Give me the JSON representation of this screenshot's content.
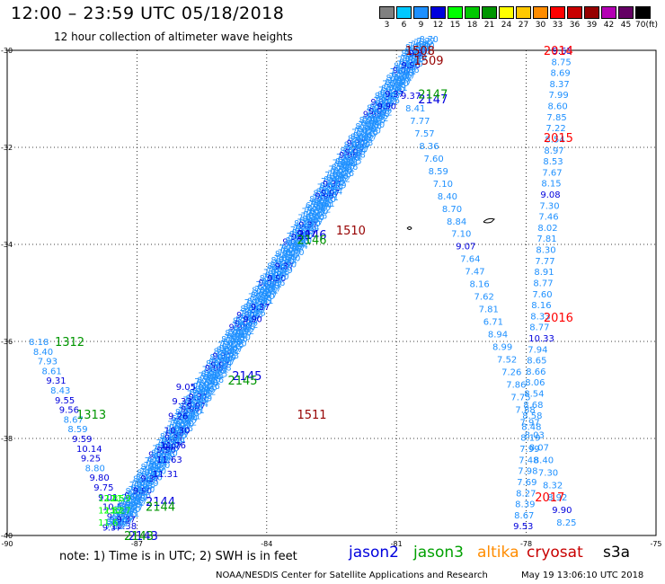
{
  "header": {
    "title": "12:00 – 23:59 UTC 05/18/2018",
    "subtitle": "12 hour collection of altimeter wave heights"
  },
  "colorbar": {
    "unit": "(ft)",
    "levels": [
      "3",
      "6",
      "9",
      "12",
      "15",
      "18",
      "21",
      "24",
      "27",
      "30",
      "33",
      "36",
      "39",
      "42",
      "45",
      "70"
    ],
    "colors": [
      "#808080",
      "#00c8ff",
      "#1e90ff",
      "#0000dd",
      "#00ff00",
      "#00c800",
      "#009600",
      "#ffff00",
      "#ffc800",
      "#ff8c00",
      "#ff0000",
      "#c80000",
      "#960000",
      "#b400b4",
      "#640064",
      "#000000"
    ]
  },
  "chart_data": {
    "type": "scatter",
    "title": "12:00 – 23:59 UTC 05/18/2018",
    "subtitle": "12 hour collection of altimeter wave heights",
    "x_ticks": [
      "-90",
      "-87",
      "-84",
      "-81",
      "-78",
      "-75"
    ],
    "y_ticks": [
      "-30",
      "-32",
      "-34",
      "-36",
      "-38",
      "-40"
    ],
    "xlim": [
      -90,
      -75
    ],
    "ylim": [
      -40,
      -30
    ],
    "grid": true,
    "series": [
      {
        "name": "jason2",
        "color": "#0000dd",
        "alt_color": "#1e90ff",
        "points": [
          {
            "x": -89.5,
            "y": -36.0,
            "label": "8.18"
          },
          {
            "x": -89.4,
            "y": -36.2,
            "label": "8.40"
          },
          {
            "x": -89.3,
            "y": -36.4,
            "label": "7.93"
          },
          {
            "x": -89.2,
            "y": -36.6,
            "label": "8.61"
          },
          {
            "x": -89.1,
            "y": -36.8,
            "label": "9.31"
          },
          {
            "x": -89.0,
            "y": -37.0,
            "label": "8.43"
          },
          {
            "x": -88.9,
            "y": -37.2,
            "label": "9.55"
          },
          {
            "x": -88.8,
            "y": -37.4,
            "label": "9.56"
          },
          {
            "x": -88.7,
            "y": -37.6,
            "label": "8.67"
          },
          {
            "x": -88.6,
            "y": -37.8,
            "label": "8.59"
          },
          {
            "x": -88.5,
            "y": -38.0,
            "label": "9.59"
          },
          {
            "x": -88.4,
            "y": -38.2,
            "label": "10.14"
          },
          {
            "x": -88.3,
            "y": -38.4,
            "label": "9.25"
          },
          {
            "x": -88.2,
            "y": -38.6,
            "label": "8.80"
          },
          {
            "x": -88.1,
            "y": -38.8,
            "label": "9.80"
          },
          {
            "x": -88.0,
            "y": -39.0,
            "label": "9.75"
          },
          {
            "x": -87.9,
            "y": -39.2,
            "label": "9.01"
          },
          {
            "x": -87.8,
            "y": -39.4,
            "label": "10.51"
          },
          {
            "x": -87.7,
            "y": -39.6,
            "label": "9.37"
          },
          {
            "x": -87.6,
            "y": -39.8,
            "label": "10.38"
          }
        ],
        "annotations": [
          {
            "text": "2147",
            "x": -80.5,
            "y": -31.0,
            "color": "#0000dd"
          },
          {
            "text": "2146",
            "x": -83.3,
            "y": -33.8,
            "color": "#0000dd"
          },
          {
            "text": "2145",
            "x": -84.8,
            "y": -36.7,
            "color": "#0000dd"
          },
          {
            "text": "2144",
            "x": -86.8,
            "y": -39.3,
            "color": "#0000dd"
          },
          {
            "text": "2143",
            "x": -87.2,
            "y": -40.0,
            "color": "#0000dd"
          }
        ]
      },
      {
        "name": "jason3",
        "color": "#00a000",
        "annotations": [
          {
            "text": "1312",
            "x": -88.9,
            "y": -36.0,
            "color": "#009600"
          },
          {
            "text": "1313",
            "x": -88.4,
            "y": -37.5,
            "color": "#009600"
          },
          {
            "text": "2147",
            "x": -80.5,
            "y": -30.9,
            "color": "#009600"
          },
          {
            "text": "2146",
            "x": -83.3,
            "y": -33.9,
            "color": "#009600"
          },
          {
            "text": "2145",
            "x": -84.9,
            "y": -36.8,
            "color": "#009600"
          },
          {
            "text": "2144",
            "x": -86.8,
            "y": -39.4,
            "color": "#009600"
          },
          {
            "text": "2143",
            "x": -87.3,
            "y": -40.0,
            "color": "#009600"
          }
        ]
      },
      {
        "name": "altika",
        "color": "#ff8c00"
      },
      {
        "name": "cryosat",
        "color": "#c80000",
        "annotations": [
          {
            "text": "1508",
            "x": -80.8,
            "y": -30.0,
            "color": "#960000"
          },
          {
            "text": "1509",
            "x": -80.6,
            "y": -30.2,
            "color": "#960000"
          },
          {
            "text": "1510",
            "x": -82.4,
            "y": -33.7,
            "color": "#960000"
          },
          {
            "text": "1511",
            "x": -83.3,
            "y": -37.5,
            "color": "#960000"
          }
        ]
      },
      {
        "name": "s3a",
        "color": "#000000",
        "annotations": [
          {
            "text": "2014",
            "x": -77.6,
            "y": -30.0,
            "color": "#ff0000"
          },
          {
            "text": "2015",
            "x": -77.6,
            "y": -31.8,
            "color": "#ff0000"
          },
          {
            "text": "2016",
            "x": -77.6,
            "y": -35.5,
            "color": "#ff0000"
          },
          {
            "text": "2017",
            "x": -77.8,
            "y": -39.2,
            "color": "#ff0000"
          }
        ]
      }
    ],
    "tracks": {
      "diagonal_a": [
        "9.37",
        "8.41",
        "7.77",
        "7.57",
        "8.36",
        "7.60",
        "8.59",
        "7.10",
        "8.40",
        "8.70",
        "8.84",
        "7.10",
        "9.07",
        "7.64",
        "7.47",
        "8.16",
        "7.62",
        "7.81",
        "6.71",
        "8.94",
        "8.99",
        "7.52",
        "7.26",
        "7.86",
        "7.75",
        "7.88",
        "7.97",
        "8.03",
        "8.07",
        "8.40",
        "7.30",
        "8.32",
        "8.92",
        "9.90",
        "8.25"
      ],
      "diagonal_b_head": [
        "9.05",
        "9.33",
        "9.26",
        "10.30",
        "11.76",
        "11.63",
        "11.31"
      ],
      "right_track": [
        "9.65",
        "8.75",
        "8.69",
        "8.37",
        "7.99",
        "8.60",
        "7.85",
        "7.22",
        "8.54",
        "8.97",
        "8.53",
        "7.67",
        "8.15",
        "9.08",
        "7.30",
        "7.46",
        "8.02",
        "7.81",
        "8.30",
        "7.77",
        "8.91",
        "8.77",
        "7.60",
        "8.16",
        "8.33",
        "8.77",
        "10.33",
        "7.94",
        "8.65",
        "8.66",
        "8.06",
        "8.54",
        "8.68",
        "8.58",
        "8.48",
        "8.19",
        "7.99",
        "7.48",
        "7.98",
        "7.69",
        "8.27",
        "8.39",
        "8.67",
        "9.53"
      ]
    }
  },
  "legend": {
    "note": "note:  1) Time is in UTC;  2) SWH is in feet",
    "items": [
      {
        "label": "jason2",
        "color": "#0000dd"
      },
      {
        "label": "jason3",
        "color": "#00a000"
      },
      {
        "label": "altika",
        "color": "#ff8c00"
      },
      {
        "label": "cryosat",
        "color": "#c80000"
      },
      {
        "label": "s3a",
        "color": "#000000"
      }
    ]
  },
  "footer": {
    "credit": "NOAA/NESDIS Center for Satellite Applications and Research",
    "timestamp": "May 19 13:06:10 UTC 2018"
  }
}
